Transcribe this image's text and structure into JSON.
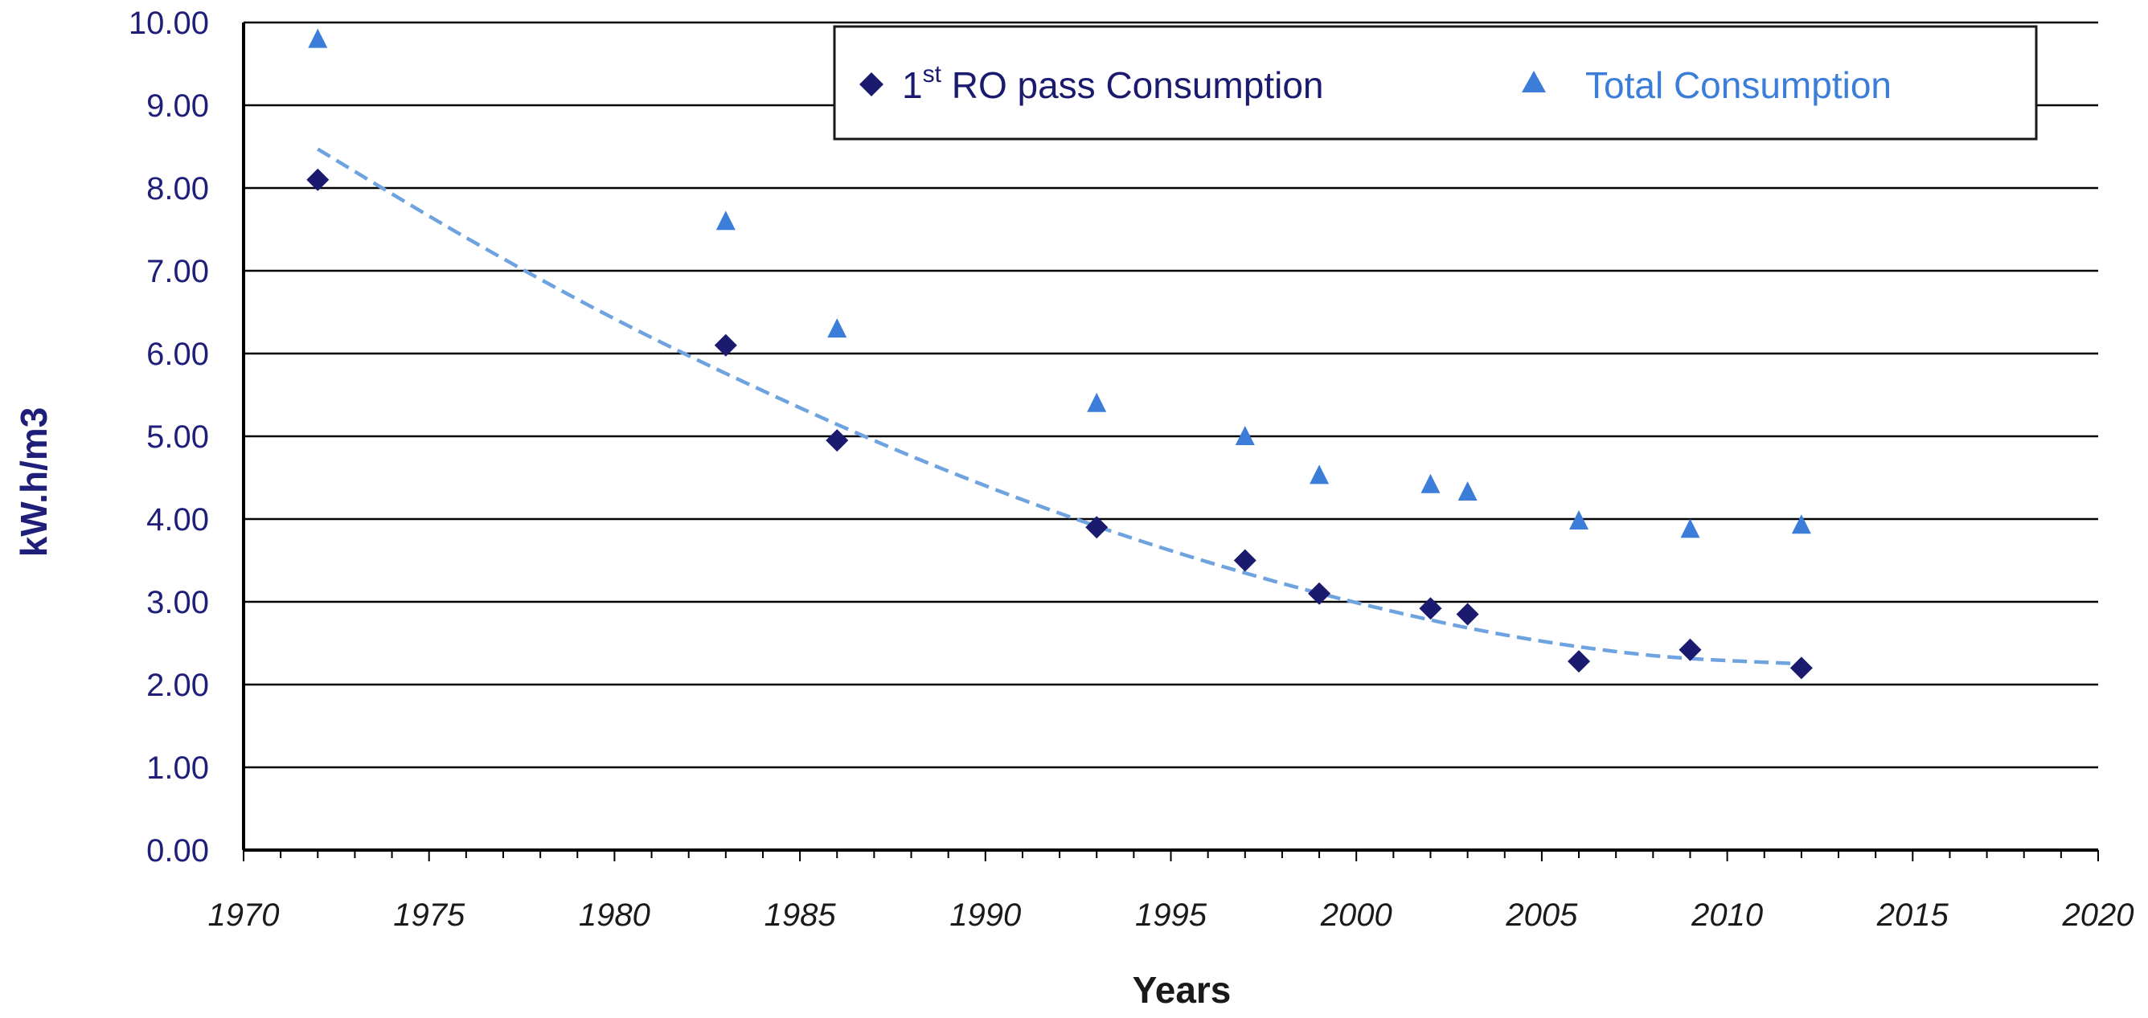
{
  "chart_data": {
    "type": "scatter",
    "xlabel": "Years",
    "ylabel": "kW.h/m3",
    "xlim": [
      1970,
      2020
    ],
    "ylim": [
      0,
      10
    ],
    "x_ticks": [
      "1970",
      "1975",
      "1980",
      "1985",
      "1990",
      "1995",
      "2000",
      "2005",
      "2010",
      "2015",
      "2020"
    ],
    "y_ticks": [
      "0.00",
      "1.00",
      "2.00",
      "3.00",
      "4.00",
      "5.00",
      "6.00",
      "7.00",
      "8.00",
      "9.00",
      "10.00"
    ],
    "grid": "horizontal",
    "legend_position": "top-right",
    "series": [
      {
        "name_main": "1",
        "name_sup": "st",
        "name_rest": " RO pass Consumption",
        "marker": "diamond",
        "color": "#1a1a6e",
        "x": [
          1972,
          1983,
          1986,
          1993,
          1997,
          1999,
          2002,
          2003,
          2006,
          2009,
          2012
        ],
        "y": [
          8.1,
          6.1,
          4.95,
          3.9,
          3.5,
          3.1,
          2.92,
          2.85,
          2.28,
          2.42,
          2.2
        ]
      },
      {
        "name": "Total Consumption",
        "marker": "triangle",
        "color": "#3b7dd8",
        "x": [
          1972,
          1983,
          1986,
          1993,
          1997,
          1999,
          2002,
          2003,
          2006,
          2009,
          2012
        ],
        "y": [
          9.8,
          7.6,
          6.3,
          5.4,
          5.0,
          4.53,
          4.42,
          4.33,
          3.98,
          3.88,
          3.93
        ]
      }
    ],
    "trendline": {
      "style": "dashed",
      "color": "#6fa3e0",
      "x": [
        1972,
        1976,
        1980,
        1984,
        1988,
        1992,
        1996,
        2000,
        2004,
        2008,
        2012
      ],
      "y": [
        8.47,
        7.4,
        6.42,
        5.55,
        4.76,
        4.07,
        3.48,
        2.99,
        2.6,
        2.35,
        2.25
      ]
    }
  }
}
